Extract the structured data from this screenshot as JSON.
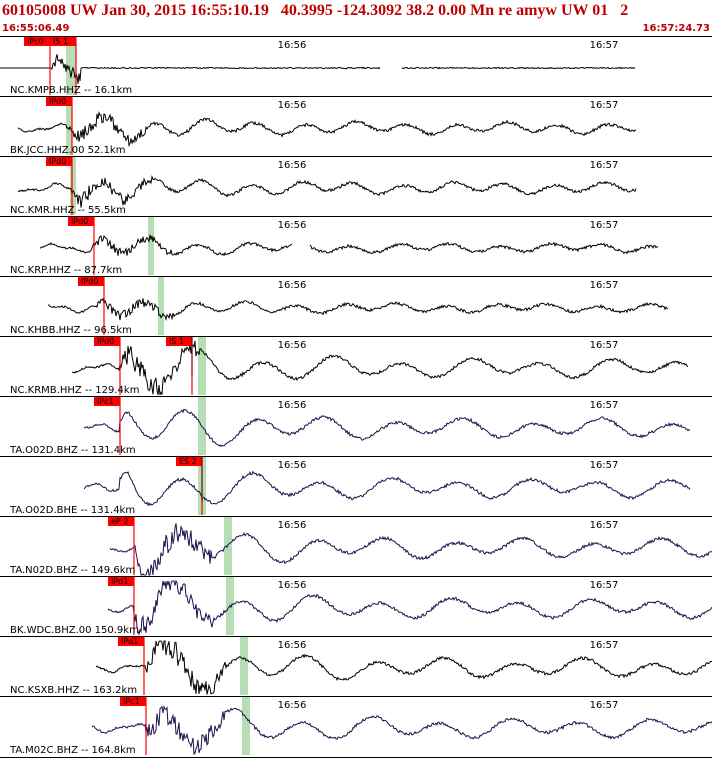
{
  "header": {
    "title": "60105008 UW Jan 30, 2015 16:55:10.19   40.3995 -124.3092 38.2 0.00 Mn re amyw UW 01   2",
    "time_start": "16:55:06.49",
    "time_end": "16:57:24.73"
  },
  "chart_data": {
    "type": "line",
    "time_ticks": [
      "16:56",
      "16:57"
    ],
    "traces": [
      {
        "label": "NC.KMPB.HHZ -- 16.1km",
        "color": "#000000",
        "picks": [
          {
            "text": "IPc0",
            "kind": "P"
          },
          {
            "text": "IS 1",
            "kind": "S"
          }
        ]
      },
      {
        "label": "BK.JCC.HHZ.00 52.1km",
        "color": "#000000",
        "picks": [
          {
            "text": "IPd0",
            "kind": "P"
          }
        ]
      },
      {
        "label": "NC.KMR.HHZ -- 55.5km",
        "color": "#000000",
        "picks": [
          {
            "text": "IPd0",
            "kind": "P"
          }
        ]
      },
      {
        "label": "NC.KRP.HHZ -- 87.7km",
        "color": "#000000",
        "picks": [
          {
            "text": "IPd0",
            "kind": "P"
          }
        ]
      },
      {
        "label": "NC.KHBB.HHZ -- 96.5km",
        "color": "#000000",
        "picks": [
          {
            "text": "IPd0",
            "kind": "P"
          }
        ]
      },
      {
        "label": "NC.KRMB.HHZ -- 129.4km",
        "color": "#000000",
        "picks": [
          {
            "text": "IPd0",
            "kind": "P"
          },
          {
            "text": "IS 1",
            "kind": "S"
          }
        ]
      },
      {
        "label": "TA.O02D.BHZ -- 131.4km",
        "color": "#1e0f4b",
        "picks": [
          {
            "text": "IPc1",
            "kind": "P"
          }
        ]
      },
      {
        "label": "TA.O02D.BHE -- 131.4km",
        "color": "#1e0f4b",
        "picks": [
          {
            "text": "ES 2",
            "kind": "S"
          }
        ]
      },
      {
        "label": "TA.N02D.BHZ -- 149.6km",
        "color": "#1e0f4b",
        "picks": [
          {
            "text": "eP 2",
            "kind": "P"
          }
        ]
      },
      {
        "label": "BK.WDC.BHZ.00 150.9km",
        "color": "#1e0f4b",
        "picks": [
          {
            "text": "IPd1",
            "kind": "P"
          }
        ]
      },
      {
        "label": "NC.KSXB.HHZ -- 163.2km",
        "color": "#000000",
        "picks": [
          {
            "text": "IPd1",
            "kind": "P"
          }
        ]
      },
      {
        "label": "TA.M02C.BHZ -- 164.8km",
        "color": "#1e0f4b",
        "picks": [
          {
            "text": "IPc1",
            "kind": "P"
          }
        ]
      }
    ]
  }
}
